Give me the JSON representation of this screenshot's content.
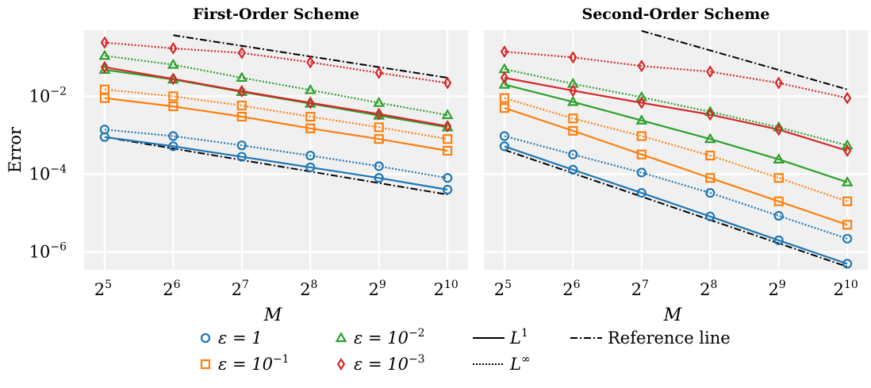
{
  "colors": {
    "eps_1": "#1f77b4",
    "eps_1e-1": "#ff7f0e",
    "eps_1e-2": "#2ca02c",
    "eps_1e-3": "#d62728",
    "reference": "#000000",
    "panel_bg": "#f0f0f0",
    "grid": "#ffffff"
  },
  "legend": {
    "items": [
      {
        "key": "eps_1",
        "marker": "circle",
        "base": "ε = 1",
        "sup": ""
      },
      {
        "key": "eps_1e-1",
        "marker": "square",
        "base": "ε = 10",
        "sup": "−1"
      },
      {
        "key": "eps_1e-2",
        "marker": "triangle",
        "base": "ε = 10",
        "sup": "−2"
      },
      {
        "key": "eps_1e-3",
        "marker": "diamond",
        "base": "ε = 10",
        "sup": "−3"
      },
      {
        "key": "l1",
        "line": "solid",
        "base": "L",
        "sup": "1"
      },
      {
        "key": "linf",
        "line": "dotted",
        "base": "L",
        "sup": "∞"
      },
      {
        "key": "ref",
        "line": "dashdot",
        "base": "Reference line",
        "sup": ""
      }
    ]
  },
  "chart_data": [
    {
      "type": "line",
      "title": "First-Order Scheme",
      "xlabel": "M",
      "ylabel": "Error",
      "xscale": "log2",
      "yscale": "log10",
      "x": [
        32,
        64,
        128,
        256,
        512,
        1024
      ],
      "xtick_labels": [
        {
          "base": "2",
          "exp": "5"
        },
        {
          "base": "2",
          "exp": "6"
        },
        {
          "base": "2",
          "exp": "7"
        },
        {
          "base": "2",
          "exp": "8"
        },
        {
          "base": "2",
          "exp": "9"
        },
        {
          "base": "2",
          "exp": "10"
        }
      ],
      "ytick_labels": [
        {
          "base": "10",
          "exp": "−2",
          "value": 0.01
        },
        {
          "base": "10",
          "exp": "−4",
          "value": 0.0001
        },
        {
          "base": "10",
          "exp": "−6",
          "value": 1e-06
        }
      ],
      "xlim": [
        26,
        1260
      ],
      "ylim": [
        3.5e-07,
        0.5
      ],
      "grid": true,
      "series": [
        {
          "color_key": "eps_1",
          "norm": "L1",
          "marker": "circle",
          "values": [
            0.0009,
            0.00052,
            0.00028,
            0.00015,
            8e-05,
            4e-05
          ]
        },
        {
          "color_key": "eps_1",
          "norm": "Linf",
          "marker": "circle",
          "values": [
            0.0014,
            0.00095,
            0.00055,
            0.0003,
            0.00016,
            8e-05
          ]
        },
        {
          "color_key": "eps_1e-1",
          "norm": "L1",
          "marker": "square",
          "values": [
            0.009,
            0.0055,
            0.003,
            0.0015,
            0.0008,
            0.0004
          ]
        },
        {
          "color_key": "eps_1e-1",
          "norm": "Linf",
          "marker": "square",
          "values": [
            0.015,
            0.01,
            0.0058,
            0.003,
            0.0016,
            0.0008
          ]
        },
        {
          "color_key": "eps_1e-2",
          "norm": "L1",
          "marker": "triangle",
          "values": [
            0.048,
            0.027,
            0.013,
            0.0065,
            0.0032,
            0.0016
          ]
        },
        {
          "color_key": "eps_1e-2",
          "norm": "Linf",
          "marker": "triangle",
          "values": [
            0.11,
            0.065,
            0.03,
            0.0145,
            0.0068,
            0.0033
          ]
        },
        {
          "color_key": "eps_1e-3",
          "norm": "L1",
          "marker": "diamond",
          "values": [
            0.056,
            0.028,
            0.0135,
            0.0068,
            0.0035,
            0.0017
          ]
        },
        {
          "color_key": "eps_1e-3",
          "norm": "Linf",
          "marker": "diamond",
          "values": [
            0.24,
            0.17,
            0.13,
            0.075,
            0.04,
            0.022
          ]
        }
      ],
      "reference_lines": [
        {
          "x": [
            32,
            1024
          ],
          "values": [
            0.0009,
            3e-05
          ]
        },
        {
          "x": [
            64,
            1024
          ],
          "values": [
            0.37,
            0.03
          ]
        }
      ]
    },
    {
      "type": "line",
      "title": "Second-Order Scheme",
      "xlabel": "M",
      "ylabel": "",
      "xscale": "log2",
      "yscale": "log10",
      "x": [
        32,
        64,
        128,
        256,
        512,
        1024
      ],
      "xtick_labels": [
        {
          "base": "2",
          "exp": "5"
        },
        {
          "base": "2",
          "exp": "6"
        },
        {
          "base": "2",
          "exp": "7"
        },
        {
          "base": "2",
          "exp": "8"
        },
        {
          "base": "2",
          "exp": "9"
        },
        {
          "base": "2",
          "exp": "10"
        }
      ],
      "ytick_labels": [],
      "xlim": [
        26,
        1260
      ],
      "ylim": [
        3.5e-07,
        0.5
      ],
      "grid": true,
      "series": [
        {
          "color_key": "eps_1",
          "norm": "L1",
          "marker": "circle",
          "values": [
            0.00052,
            0.00013,
            3.3e-05,
            8.2e-06,
            2e-06,
            5e-07
          ]
        },
        {
          "color_key": "eps_1",
          "norm": "Linf",
          "marker": "circle",
          "values": [
            0.00095,
            0.00032,
            0.00011,
            3.3e-05,
            8.5e-06,
            2.2e-06
          ]
        },
        {
          "color_key": "eps_1e-1",
          "norm": "L1",
          "marker": "square",
          "values": [
            0.005,
            0.0013,
            0.00032,
            8e-05,
            2e-05,
            5e-06
          ]
        },
        {
          "color_key": "eps_1e-1",
          "norm": "Linf",
          "marker": "square",
          "values": [
            0.009,
            0.0027,
            0.00095,
            0.0003,
            8e-05,
            2e-05
          ]
        },
        {
          "color_key": "eps_1e-2",
          "norm": "L1",
          "marker": "triangle",
          "values": [
            0.02,
            0.0072,
            0.0024,
            0.0008,
            0.00024,
            6.2e-05
          ]
        },
        {
          "color_key": "eps_1e-2",
          "norm": "Linf",
          "marker": "triangle",
          "values": [
            0.05,
            0.021,
            0.0095,
            0.004,
            0.0016,
            0.00055
          ]
        },
        {
          "color_key": "eps_1e-3",
          "norm": "L1",
          "marker": "diamond",
          "values": [
            0.03,
            0.014,
            0.0068,
            0.0034,
            0.0014,
            0.0004
          ]
        },
        {
          "color_key": "eps_1e-3",
          "norm": "Linf",
          "marker": "diamond",
          "values": [
            0.14,
            0.1,
            0.06,
            0.043,
            0.022,
            0.009
          ]
        }
      ],
      "reference_lines": [
        {
          "x": [
            32,
            1024
          ],
          "values": [
            0.00042,
            4.2e-07
          ]
        },
        {
          "x": [
            128,
            1024
          ],
          "values": [
            0.48,
            0.015
          ]
        }
      ]
    }
  ]
}
